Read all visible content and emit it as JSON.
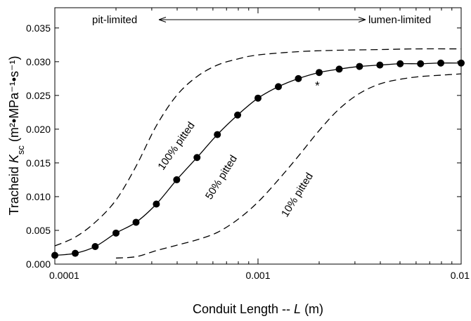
{
  "chart_data": {
    "type": "line",
    "title": "",
    "xlabel": {
      "prefix": "Conduit Length -- ",
      "italic": "L",
      "suffix": " (m)"
    },
    "ylabel": {
      "prefix": "Tracheid ",
      "italic": "K",
      "subscript": "sc",
      "units": " (m²•MPa⁻¹•s⁻¹)"
    },
    "x_scale": "log",
    "xlim": [
      0.0001,
      0.01
    ],
    "ylim": [
      0,
      0.038
    ],
    "x_ticks": [
      {
        "value": 0.0001,
        "label": "0.0001"
      },
      {
        "value": 0.001,
        "label": "0.001"
      },
      {
        "value": 0.01,
        "label": "0.01"
      }
    ],
    "y_ticks": [
      {
        "value": 0.0,
        "label": "0.000"
      },
      {
        "value": 0.005,
        "label": "0.005"
      },
      {
        "value": 0.01,
        "label": "0.010"
      },
      {
        "value": 0.015,
        "label": "0.015"
      },
      {
        "value": 0.02,
        "label": "0.020"
      },
      {
        "value": 0.025,
        "label": "0.025"
      },
      {
        "value": 0.03,
        "label": "0.030"
      },
      {
        "value": 0.035,
        "label": "0.035"
      }
    ],
    "grid": false,
    "legend": "none",
    "series": [
      {
        "name": "50% pitted",
        "style": "solid-markers",
        "color": "#000000",
        "points": [
          {
            "x": 0.0001,
            "y": 0.0013
          },
          {
            "x": 0.000126,
            "y": 0.0016
          },
          {
            "x": 0.000158,
            "y": 0.0026
          },
          {
            "x": 0.0002,
            "y": 0.0046
          },
          {
            "x": 0.000251,
            "y": 0.0062
          },
          {
            "x": 0.000316,
            "y": 0.0089
          },
          {
            "x": 0.000398,
            "y": 0.0125
          },
          {
            "x": 0.000501,
            "y": 0.0158
          },
          {
            "x": 0.000631,
            "y": 0.0192
          },
          {
            "x": 0.000794,
            "y": 0.0221
          },
          {
            "x": 0.001,
            "y": 0.0246
          },
          {
            "x": 0.00126,
            "y": 0.0263
          },
          {
            "x": 0.00158,
            "y": 0.0275
          },
          {
            "x": 0.002,
            "y": 0.0284
          },
          {
            "x": 0.00251,
            "y": 0.0289
          },
          {
            "x": 0.00316,
            "y": 0.0293
          },
          {
            "x": 0.00398,
            "y": 0.0295
          },
          {
            "x": 0.00501,
            "y": 0.0297
          },
          {
            "x": 0.00631,
            "y": 0.0297
          },
          {
            "x": 0.00794,
            "y": 0.0298
          },
          {
            "x": 0.01,
            "y": 0.0298
          }
        ]
      },
      {
        "name": "100% pitted",
        "style": "dashed",
        "color": "#000000",
        "points": [
          {
            "x": 0.0001,
            "y": 0.0027
          },
          {
            "x": 0.000126,
            "y": 0.004
          },
          {
            "x": 0.000158,
            "y": 0.0062
          },
          {
            "x": 0.0002,
            "y": 0.0095
          },
          {
            "x": 0.000251,
            "y": 0.0145
          },
          {
            "x": 0.000316,
            "y": 0.0205
          },
          {
            "x": 0.000398,
            "y": 0.025
          },
          {
            "x": 0.000501,
            "y": 0.0278
          },
          {
            "x": 0.000631,
            "y": 0.0295
          },
          {
            "x": 0.000794,
            "y": 0.0304
          },
          {
            "x": 0.001,
            "y": 0.031
          },
          {
            "x": 0.0016,
            "y": 0.0315
          },
          {
            "x": 0.0025,
            "y": 0.0317
          },
          {
            "x": 0.004,
            "y": 0.0318
          },
          {
            "x": 0.006,
            "y": 0.0319
          },
          {
            "x": 0.01,
            "y": 0.0319
          }
        ]
      },
      {
        "name": "10% pitted",
        "style": "dashed",
        "color": "#000000",
        "points": [
          {
            "x": 0.0002,
            "y": 0.0009
          },
          {
            "x": 0.000251,
            "y": 0.0011
          },
          {
            "x": 0.000316,
            "y": 0.002
          },
          {
            "x": 0.000398,
            "y": 0.0028
          },
          {
            "x": 0.000501,
            "y": 0.0036
          },
          {
            "x": 0.000631,
            "y": 0.0047
          },
          {
            "x": 0.000794,
            "y": 0.0066
          },
          {
            "x": 0.001,
            "y": 0.0092
          },
          {
            "x": 0.00126,
            "y": 0.0125
          },
          {
            "x": 0.00158,
            "y": 0.016
          },
          {
            "x": 0.002,
            "y": 0.0198
          },
          {
            "x": 0.00251,
            "y": 0.023
          },
          {
            "x": 0.00316,
            "y": 0.0253
          },
          {
            "x": 0.00398,
            "y": 0.0267
          },
          {
            "x": 0.00501,
            "y": 0.0274
          },
          {
            "x": 0.00631,
            "y": 0.0278
          },
          {
            "x": 0.00794,
            "y": 0.028
          },
          {
            "x": 0.01,
            "y": 0.0282
          }
        ]
      }
    ],
    "annotations": {
      "pit_limited": "pit-limited",
      "lumen_limited": "lumen-limited",
      "asterisk": {
        "text": "*",
        "x": 0.00196,
        "y": 0.0265
      }
    }
  }
}
